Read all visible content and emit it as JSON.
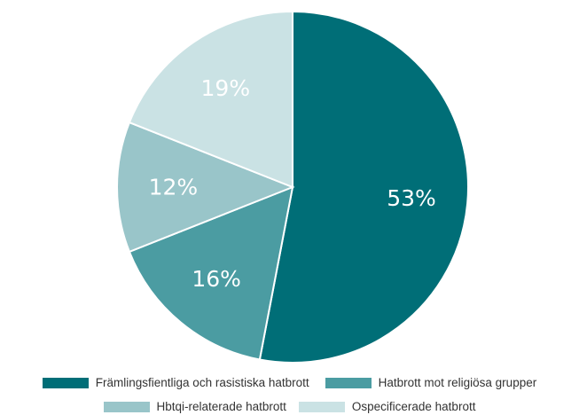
{
  "chart_data": {
    "type": "pie",
    "title": "",
    "categories": [
      "Främlingsfientliga och rasistiska hatbrott",
      "Hatbrott mot religiösa grupper",
      "Hbtqi-relaterade hatbrott",
      "Ospecificerade hatbrott"
    ],
    "values": [
      53,
      16,
      12,
      19
    ],
    "value_labels": [
      "53%",
      "16%",
      "12%",
      "19%"
    ],
    "colors": [
      "#006e77",
      "#4b9ca2",
      "#99c5c9",
      "#cae2e4"
    ],
    "legend_position": "bottom",
    "start_angle": "top, clockwise"
  }
}
